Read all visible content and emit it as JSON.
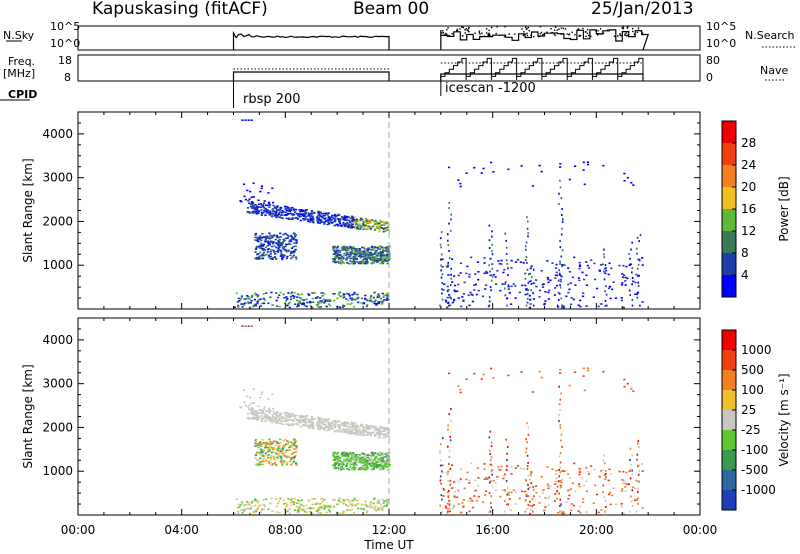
{
  "header": {
    "station": "Kapuskasing (fitACF)",
    "beam": "Beam 00",
    "date": "25/Jan/2013"
  },
  "strip_labels": {
    "nsky": "N.Sky",
    "freq_top": "Freq.",
    "freq_unit": "[MHz]",
    "cpid": "CPID",
    "nsearch": "N.Search",
    "nave": "Nave",
    "nsky_tick_hi": "10^5",
    "nsky_tick_lo": "10^0",
    "freq_tick_hi": "18",
    "freq_tick_lo": "8",
    "nsearch_tick_hi": "10^5",
    "nsearch_tick_lo": "10^0",
    "nave_tick_hi": "80",
    "nave_tick_lo": "0"
  },
  "cpid_modes": [
    {
      "label": "rbsp 200",
      "start_hour": 6.0
    },
    {
      "label": "icescan -1200",
      "start_hour": 14.0
    }
  ],
  "chart_data": [
    {
      "type": "heatmap",
      "title": "",
      "xlabel": "Time UT",
      "ylabel": "Slant Range [km]",
      "x_ticks": [
        "00:00",
        "04:00",
        "08:00",
        "12:00",
        "16:00",
        "20:00",
        "00:00"
      ],
      "x_range_hours": [
        0,
        24
      ],
      "y_ticks": [
        "1000",
        "2000",
        "3000",
        "4000"
      ],
      "y_range_km": [
        0,
        4500
      ],
      "colorbar_label": "Power [dB]",
      "colorbar_ticks": [
        "4",
        "8",
        "12",
        "16",
        "20",
        "24",
        "28"
      ],
      "colorbar_colors": [
        "#0000ff",
        "#1e3fa8",
        "#3a7a58",
        "#5fba3a",
        "#f0c020",
        "#f08020",
        "#f04010",
        "#ee0000"
      ],
      "legend_position": "right",
      "grid": false
    },
    {
      "type": "heatmap",
      "title": "",
      "xlabel": "Time UT",
      "ylabel": "Slant Range [km]",
      "x_ticks": [
        "00:00",
        "04:00",
        "08:00",
        "12:00",
        "16:00",
        "20:00",
        "00:00"
      ],
      "x_range_hours": [
        0,
        24
      ],
      "y_ticks": [
        "1000",
        "2000",
        "3000",
        "4000"
      ],
      "y_range_km": [
        0,
        4500
      ],
      "colorbar_label": "Velocity [m s⁻¹]",
      "colorbar_ticks": [
        "1000",
        "500",
        "100",
        "25",
        "-25",
        "-100",
        "-500",
        "-1000"
      ],
      "colorbar_colors": [
        "#1e3fb8",
        "#2a6aa0",
        "#3a9a50",
        "#5fca30",
        "#c8c8c0",
        "#f0c030",
        "#f08020",
        "#f04010",
        "#ee0000"
      ],
      "legend_position": "right",
      "grid": false
    }
  ],
  "colors": {
    "ground_scatter": "#c8c8c0",
    "axis": "#000000",
    "marker_line": "#aaaaaa"
  }
}
